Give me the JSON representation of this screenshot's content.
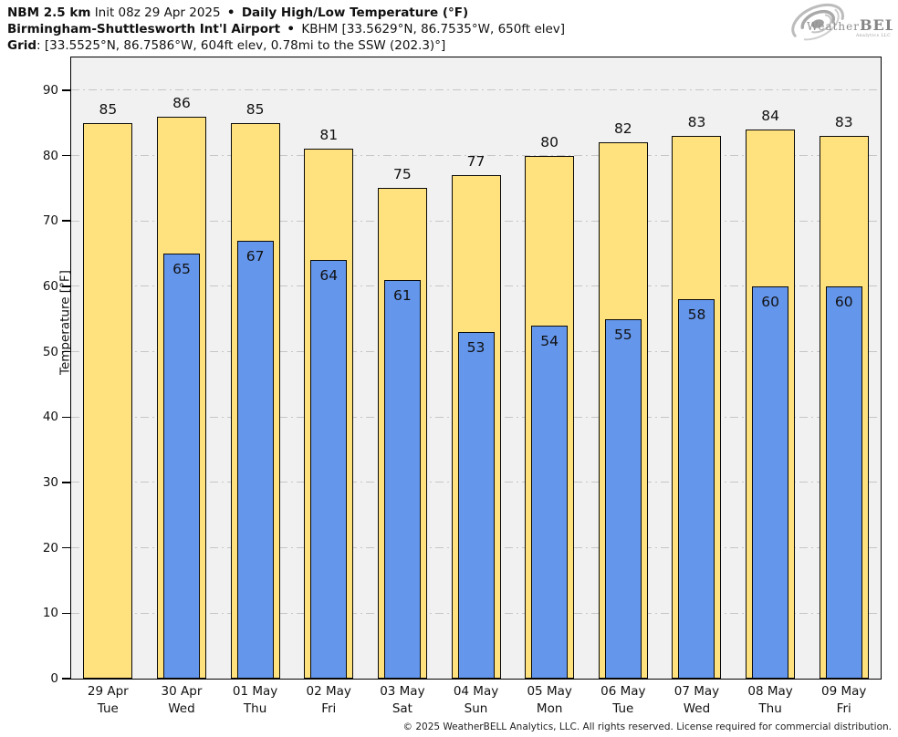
{
  "header": {
    "model": "NBM 2.5 km",
    "init": "Init 08z 29 Apr 2025",
    "bullet": "•",
    "title": "Daily High/Low Temperature (°F)",
    "station": "Birmingham-Shuttlesworth Int'l Airport",
    "station_info": "KBHM [33.5629°N, 86.7535°W, 650ft elev]",
    "grid_label": "Grid",
    "grid_info": ": [33.5525°N, 86.7586°W, 604ft elev, 0.78mi to the SSW (202.3)°]"
  },
  "logo": {
    "brand_weather": "Weather",
    "brand_bell": "BELL",
    "subtext": "Analytics LLC"
  },
  "chart_data": {
    "type": "bar",
    "title": "Daily High/Low Temperature (°F)",
    "ylabel": "Temperature [°F]",
    "ylim": [
      0,
      95
    ],
    "yticks": [
      0,
      10,
      20,
      30,
      40,
      50,
      60,
      70,
      80,
      90
    ],
    "grid": "horizontal dash-dot",
    "legend_position": "none",
    "categories": [
      {
        "date": "29 Apr",
        "day": "Tue"
      },
      {
        "date": "30 Apr",
        "day": "Wed"
      },
      {
        "date": "01 May",
        "day": "Thu"
      },
      {
        "date": "02 May",
        "day": "Fri"
      },
      {
        "date": "03 May",
        "day": "Sat"
      },
      {
        "date": "04 May",
        "day": "Sun"
      },
      {
        "date": "05 May",
        "day": "Mon"
      },
      {
        "date": "06 May",
        "day": "Tue"
      },
      {
        "date": "07 May",
        "day": "Wed"
      },
      {
        "date": "08 May",
        "day": "Thu"
      },
      {
        "date": "09 May",
        "day": "Fri"
      }
    ],
    "series": [
      {
        "name": "High",
        "color": "#ffe17e",
        "values": [
          85,
          86,
          85,
          81,
          75,
          77,
          80,
          82,
          83,
          84,
          83
        ]
      },
      {
        "name": "Low",
        "color": "#6496ec",
        "values": [
          null,
          65,
          67,
          64,
          61,
          53,
          54,
          55,
          58,
          60,
          60
        ]
      }
    ]
  },
  "footer": {
    "copyright": "© 2025 WeatherBELL Analytics, LLC. All rights reserved. License required for commercial distribution."
  }
}
